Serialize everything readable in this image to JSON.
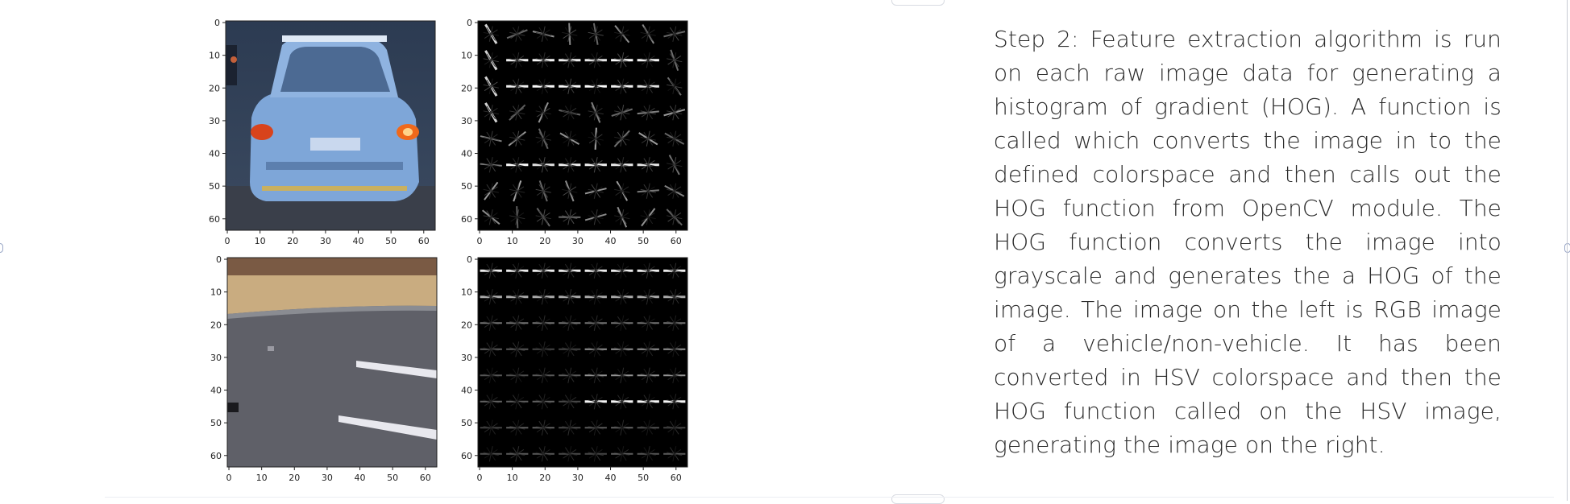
{
  "slide": {
    "body_text": "Step 2: Feature extraction algorithm is run on each raw image data for generating a histogram of gradient (HOG). A function is called which converts the image in to the defined colorspace and then calls out the HOG function from OpenCV module. The HOG function converts the image into grayscale and generates the a HOG of the image. The image on the left is RGB image of a vehicle/non-vehicle. It has been converted in HSV colorspace and then the HOG function called on the HSV image, generating the image on the right."
  },
  "figure": {
    "panels": [
      {
        "id": "vehicle-rgb",
        "kind": "rgb",
        "content": "car rear view",
        "x_ticks": [
          "0",
          "10",
          "20",
          "30",
          "40",
          "50",
          "60"
        ],
        "y_ticks": [
          "0",
          "10",
          "20",
          "30",
          "40",
          "50",
          "60"
        ]
      },
      {
        "id": "vehicle-hog",
        "kind": "hog",
        "content": "hog pattern",
        "x_ticks": [
          "0",
          "10",
          "20",
          "30",
          "40",
          "50",
          "60"
        ],
        "y_ticks": [
          "0",
          "10",
          "20",
          "30",
          "40",
          "50",
          "60"
        ]
      },
      {
        "id": "nonvehicle-rgb",
        "kind": "rgb",
        "content": "road surface",
        "x_ticks": [
          "0",
          "10",
          "20",
          "30",
          "40",
          "50",
          "60"
        ],
        "y_ticks": [
          "0",
          "10",
          "20",
          "30",
          "40",
          "50",
          "60"
        ]
      },
      {
        "id": "nonvehicle-hog",
        "kind": "hog",
        "content": "hog pattern",
        "x_ticks": [
          "0",
          "10",
          "20",
          "30",
          "40",
          "50",
          "60"
        ],
        "y_ticks": [
          "0",
          "10",
          "20",
          "30",
          "40",
          "50",
          "60"
        ]
      }
    ]
  },
  "colors": {
    "text": "#2b2b2b",
    "hog_background": "#000000",
    "hog_stroke": "#ffffff",
    "road": "#5f6068",
    "grass": "#c9ac80",
    "car_body": "#7ea6d8",
    "taillight": "#d8431c"
  }
}
